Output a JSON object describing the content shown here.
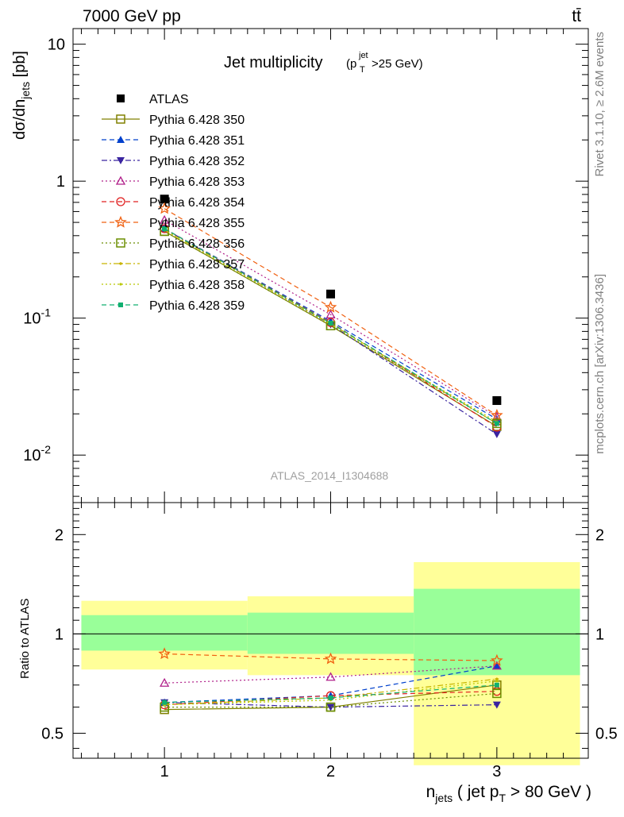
{
  "header": {
    "left": "7000 GeV pp",
    "right": "tt̄"
  },
  "side_labels": {
    "top": "Rivet 3.1.10, ≥ 2.6M events",
    "bottom": "mcplots.cern.ch [arXiv:1306.3436]"
  },
  "watermark": "ATLAS_2014_I1304688",
  "chart_data": [
    {
      "type": "scatter",
      "title": "Jet multiplicity",
      "title_suffix": {
        "base": "(p",
        "sup": "jet",
        "sub": "T",
        "rest": ">25 GeV)"
      },
      "ylabel": "dσ/dn_jets [pb]",
      "xlabel": "n_jets ( jet p_T > 80 GeV )",
      "y_scale": "log",
      "xlim": [
        0.45,
        3.55
      ],
      "ylim": [
        0.0045,
        13
      ],
      "x_ticks": [
        "1",
        "2",
        "3"
      ],
      "y_ticks": [
        "10",
        "1",
        "10^-1",
        "10^-2"
      ],
      "legend_position": "top-left",
      "x": [
        1,
        2,
        3
      ],
      "series": [
        {
          "name": "ATLAS",
          "values": [
            0.74,
            0.15,
            0.025
          ],
          "color": "#000000",
          "marker": "square-filled",
          "line": "none"
        },
        {
          "name": "Pythia 6.428 350",
          "values": [
            0.43,
            0.088,
            0.0162
          ],
          "color": "#808000",
          "marker": "square-open",
          "line": "solid"
        },
        {
          "name": "Pythia 6.428 351",
          "values": [
            0.45,
            0.095,
            0.0183
          ],
          "color": "#0040cc",
          "marker": "triangle-up-filled",
          "line": "dashed"
        },
        {
          "name": "Pythia 6.428 352",
          "values": [
            0.45,
            0.09,
            0.0142
          ],
          "color": "#3a24a0",
          "marker": "triangle-down-filled",
          "line": "dashdot"
        },
        {
          "name": "Pythia 6.428 353",
          "values": [
            0.52,
            0.106,
            0.019
          ],
          "color": "#b0208a",
          "marker": "triangle-up-open",
          "line": "dotted"
        },
        {
          "name": "Pythia 6.428 354",
          "values": [
            0.45,
            0.093,
            0.016
          ],
          "color": "#e02020",
          "marker": "circle-open",
          "line": "dashed"
        },
        {
          "name": "Pythia 6.428 355",
          "values": [
            0.63,
            0.12,
            0.0195
          ],
          "color": "#f06010",
          "marker": "star-open",
          "line": "dashed"
        },
        {
          "name": "Pythia 6.428 356",
          "values": [
            0.43,
            0.088,
            0.017
          ],
          "color": "#6b8e00",
          "marker": "square-open",
          "line": "dotted"
        },
        {
          "name": "Pythia 6.428 357",
          "values": [
            0.44,
            0.091,
            0.017
          ],
          "color": "#c8b400",
          "marker": "small-filled",
          "line": "dashdot"
        },
        {
          "name": "Pythia 6.428 358",
          "values": [
            0.44,
            0.09,
            0.0175
          ],
          "color": "#b8c800",
          "marker": "dot",
          "line": "dotted"
        },
        {
          "name": "Pythia 6.428 359",
          "values": [
            0.45,
            0.092,
            0.017
          ],
          "color": "#10b070",
          "marker": "small-square-filled",
          "line": "dashed"
        }
      ]
    },
    {
      "type": "scatter",
      "ylabel": "Ratio to ATLAS",
      "y_scale": "log",
      "xlim": [
        0.45,
        3.55
      ],
      "ylim": [
        0.42,
        2.5
      ],
      "y_ticks": [
        "2",
        "1",
        "0.5"
      ],
      "x": [
        1,
        2,
        3
      ],
      "bands": [
        {
          "x_range": [
            0.5,
            1.5
          ],
          "yellow": [
            0.78,
            1.26
          ],
          "green": [
            0.89,
            1.14
          ]
        },
        {
          "x_range": [
            1.5,
            2.5
          ],
          "yellow": [
            0.75,
            1.3
          ],
          "green": [
            0.87,
            1.16
          ]
        },
        {
          "x_range": [
            2.5,
            3.5
          ],
          "yellow": [
            0.4,
            1.65
          ],
          "green": [
            0.75,
            1.37
          ]
        }
      ],
      "reference_line": 1,
      "series": [
        {
          "name": "Pythia 6.428 350",
          "values": [
            0.59,
            0.6,
            0.7
          ]
        },
        {
          "name": "Pythia 6.428 351",
          "values": [
            0.62,
            0.65,
            0.8
          ]
        },
        {
          "name": "Pythia 6.428 352",
          "values": [
            0.62,
            0.6,
            0.61
          ]
        },
        {
          "name": "Pythia 6.428 353",
          "values": [
            0.71,
            0.74,
            0.8
          ]
        },
        {
          "name": "Pythia 6.428 354",
          "values": [
            0.61,
            0.65,
            0.67
          ]
        },
        {
          "name": "Pythia 6.428 355",
          "values": [
            0.87,
            0.84,
            0.83
          ]
        },
        {
          "name": "Pythia 6.428 356",
          "values": [
            0.6,
            0.6,
            0.66
          ]
        },
        {
          "name": "Pythia 6.428 357",
          "values": [
            0.61,
            0.64,
            0.73
          ]
        },
        {
          "name": "Pythia 6.428 358",
          "values": [
            0.61,
            0.63,
            0.72
          ]
        },
        {
          "name": "Pythia 6.428 359",
          "values": [
            0.62,
            0.64,
            0.7
          ]
        }
      ]
    }
  ]
}
